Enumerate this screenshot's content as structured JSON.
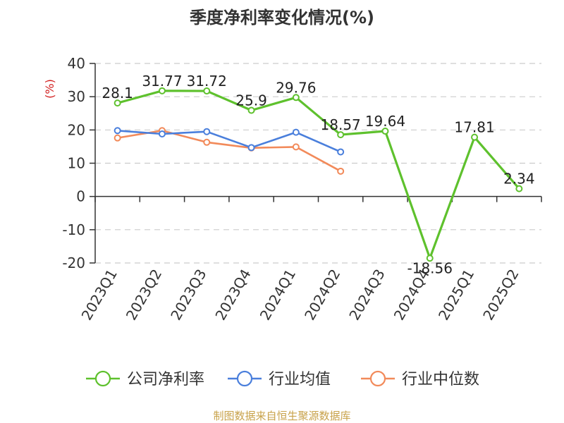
{
  "chart_data": {
    "type": "line",
    "title": "季度净利率变化情况(%)",
    "ylabel": "(%)",
    "ylim": [
      -20,
      40
    ],
    "yticks": [
      "40",
      "30",
      "20",
      "10",
      "0",
      "-10",
      "-20"
    ],
    "categories": [
      "2023Q1",
      "2023Q2",
      "2023Q3",
      "2023Q4",
      "2024Q1",
      "2024Q2",
      "2024Q3",
      "2024Q4",
      "2025Q1",
      "2025Q2"
    ],
    "series": [
      {
        "name": "公司净利率",
        "color": "#5ec12d",
        "values": [
          28.1,
          31.77,
          31.72,
          25.9,
          29.76,
          18.57,
          19.64,
          -18.56,
          17.81,
          2.34
        ],
        "labels": [
          "28.1",
          "31.77",
          "31.72",
          "25.9",
          "29.76",
          "18.57",
          "19.64",
          "-18.56",
          "17.81",
          "2.34"
        ]
      },
      {
        "name": "行业均值",
        "color": "#4a7fdc",
        "values": [
          19.8,
          18.8,
          19.5,
          14.7,
          19.3,
          13.4,
          null,
          null,
          null,
          null
        ]
      },
      {
        "name": "行业中位数",
        "color": "#f28a5a",
        "values": [
          17.6,
          19.8,
          16.3,
          14.6,
          14.9,
          7.6,
          null,
          null,
          null,
          null
        ]
      }
    ],
    "grid": true,
    "legend_position": "bottom"
  },
  "source": {
    "text": "制图数据来自恒生聚源数据库",
    "color": "#c8a24a"
  },
  "unit_color": "#d22020"
}
